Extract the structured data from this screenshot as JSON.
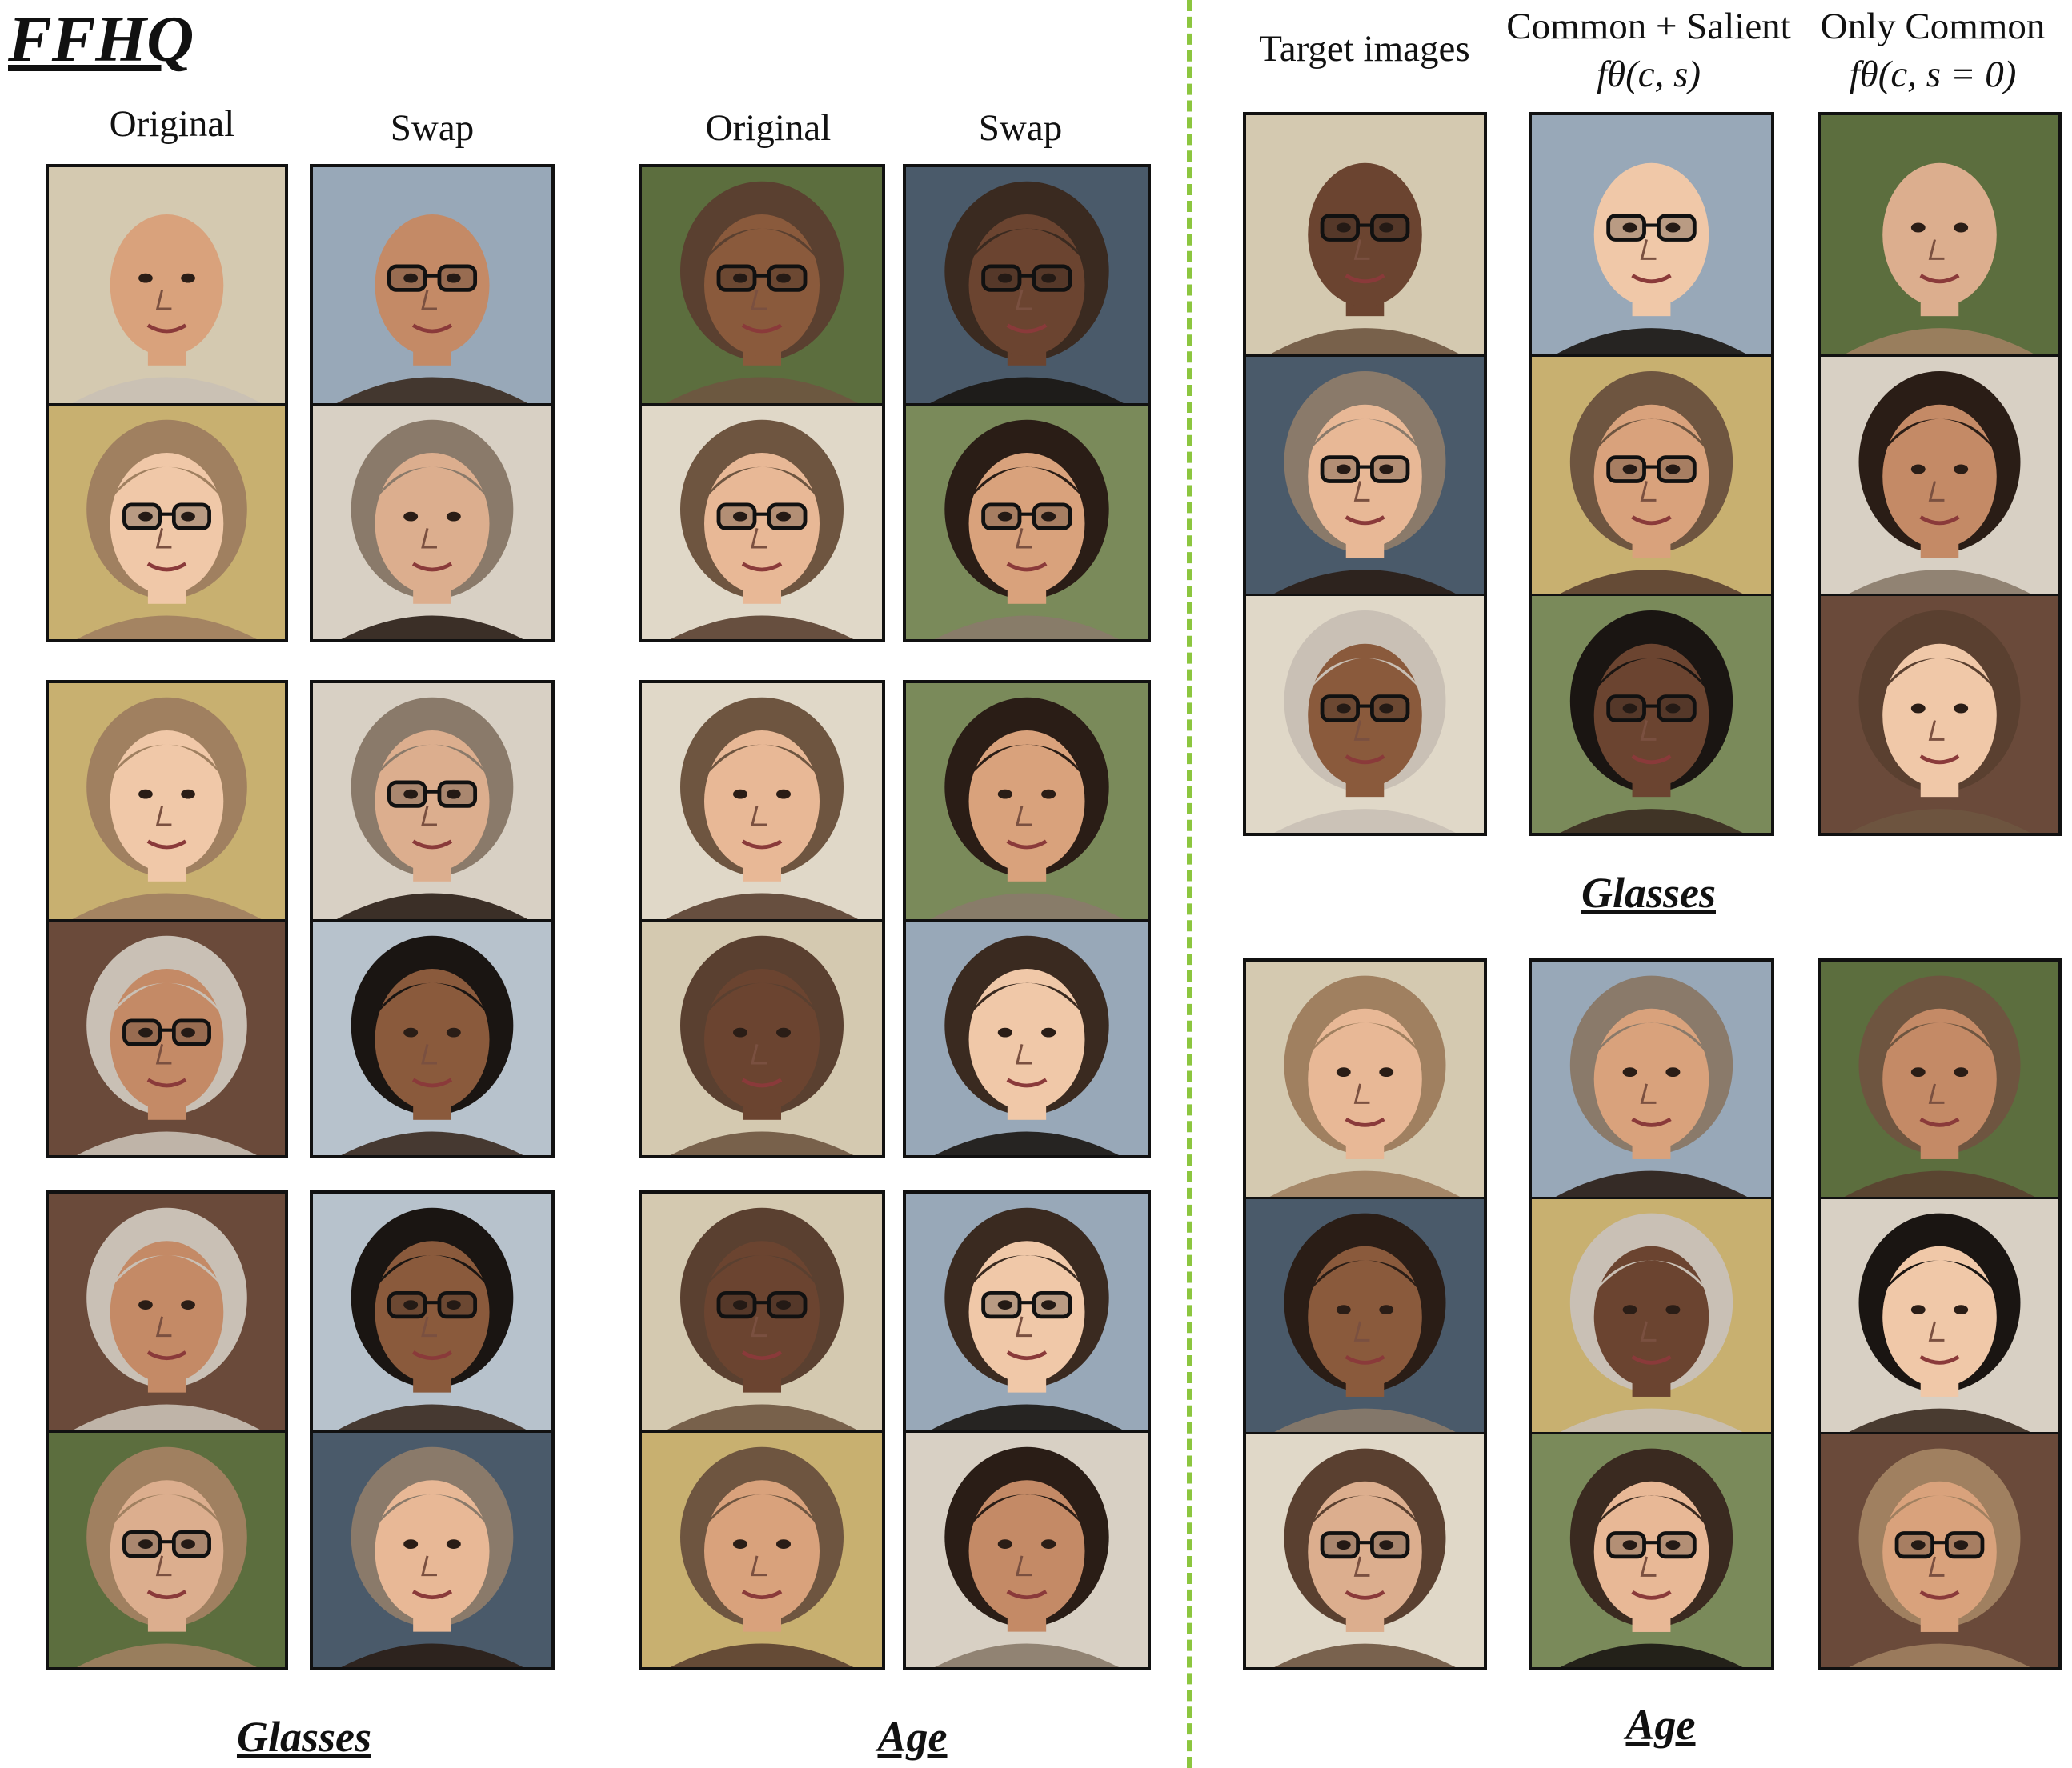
{
  "dataset_title": "FFHQ",
  "left_panel": {
    "column_headers": [
      "Original",
      "Swap",
      "Original",
      "Swap"
    ],
    "section_labels": {
      "glasses": "Glasses",
      "age": "Age"
    }
  },
  "right_panel": {
    "column_headers": {
      "target": "Target images",
      "common_salient_line1": "Common + Salient",
      "common_salient_line2": "fθ(c, s)",
      "only_common_line1": "Only Common",
      "only_common_line2": "fθ(c, s = 0)"
    },
    "section_labels": {
      "glasses": "Glasses",
      "age": "Age"
    }
  },
  "colors": {
    "divider": "#8cc63f",
    "frame": "#111111"
  }
}
